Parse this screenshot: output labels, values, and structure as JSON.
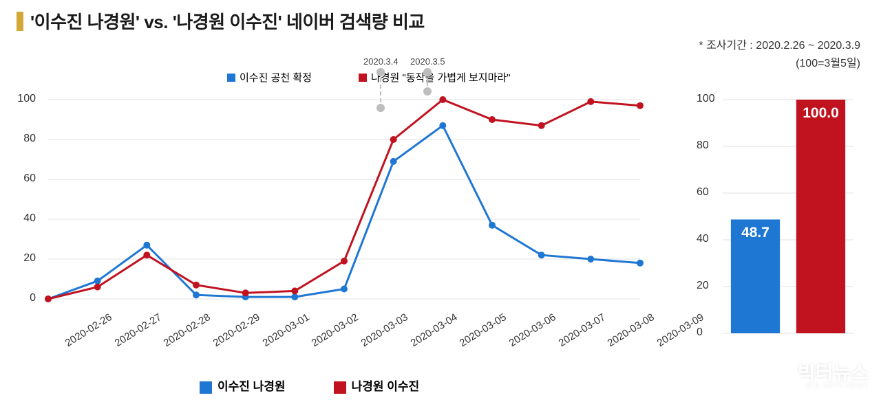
{
  "title": "'이수진 나경원' vs. '나경원 이수진' 네이버 검색량 비교",
  "subtitle": "* 조사기간 : 2020.2.26 ~ 2020.3.9",
  "sub100": "(100=3월5일)",
  "legend_top": {
    "blue_label": "이수진 공천 확정",
    "red_label": "나경원 \"동작을 가볍게 보지마라\""
  },
  "annotations": {
    "a1_date": "2020.3.4",
    "a2_date": "2020.3.5"
  },
  "line_chart": {
    "type": "line",
    "background_color": "#ffffff",
    "grid_color": "#e0e0e0",
    "ylim": [
      0,
      100
    ],
    "ytick_step": 20,
    "yticks": [
      0,
      20,
      40,
      60,
      80,
      100
    ],
    "categories": [
      "2020-02-26",
      "2020-02-27",
      "2020-02-28",
      "2020-02-29",
      "2020-03-01",
      "2020-03-02",
      "2020-03-03",
      "2020-03-04",
      "2020-03-05",
      "2020-03-06",
      "2020-03-07",
      "2020-03-08",
      "2020-03-09"
    ],
    "series": [
      {
        "name": "이수진 나경원",
        "color": "#1f77d4",
        "marker": "circle",
        "marker_size": 8,
        "line_width": 3,
        "values": [
          0,
          9,
          27,
          2,
          1,
          1,
          5,
          69,
          87,
          37,
          22,
          20,
          18
        ]
      },
      {
        "name": "나경원 이수진",
        "color": "#c1121f",
        "marker": "circle",
        "marker_size": 8,
        "line_width": 3,
        "values": [
          0,
          6,
          22,
          7,
          3,
          4,
          19,
          80,
          100,
          90,
          87,
          99,
          97
        ]
      }
    ],
    "label_fontsize": 15,
    "tick_fontsize": 16
  },
  "bar_chart": {
    "type": "bar",
    "ylim": [
      0,
      100
    ],
    "ytick_step": 20,
    "yticks": [
      0,
      20,
      40,
      60,
      80,
      100
    ],
    "bars": [
      {
        "value": 48.7,
        "label": "48.7",
        "color": "#1f77d4"
      },
      {
        "value": 100.0,
        "label": "100.0",
        "color": "#c1121f"
      }
    ],
    "bar_width": 0.75,
    "label_fontsize": 21,
    "tick_fontsize": 16,
    "grid_color": "#e0e0e0"
  },
  "legend_bottom": {
    "blue": "이수진 나경원",
    "red": "나경원 이수진"
  },
  "watermark": {
    "main": "빅터뉴스",
    "sub": "BIG DATA NEWS"
  },
  "colors": {
    "blue": "#1f77d4",
    "red": "#c1121f",
    "title_bar": "#d4a837",
    "annot_gray": "#bdbdbd"
  }
}
